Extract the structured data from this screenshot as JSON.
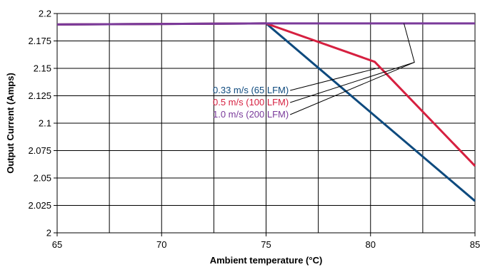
{
  "chart_data": {
    "type": "line",
    "title": "",
    "xlabel": "Ambient temperature (°C)",
    "ylabel": "Output Current (Amps)",
    "xlim": [
      65,
      85
    ],
    "ylim": [
      2,
      2.2
    ],
    "xticks": [
      65,
      70,
      75,
      80,
      85
    ],
    "xtick_labels": [
      "65",
      "70",
      "75",
      "80",
      "85"
    ],
    "yticks": [
      2,
      2.025,
      2.05,
      2.075,
      2.1,
      2.125,
      2.15,
      2.175,
      2.2
    ],
    "ytick_labels": [
      "2",
      "2.025",
      "2.05",
      "2.075",
      "2.1",
      "2.125",
      "2.15",
      "2.175",
      "2.2"
    ],
    "grid": true,
    "legend_position": "center, with leader lines to each curve",
    "series": [
      {
        "name": "0.33 m/s (65 LFM)",
        "color": "#0e4a7e",
        "x": [
          65,
          75,
          85
        ],
        "y": [
          2.19,
          2.191,
          2.029
        ]
      },
      {
        "name": "0.5 m/s (100 LFM)",
        "color": "#d62040",
        "x": [
          65,
          75,
          80.2,
          85
        ],
        "y": [
          2.19,
          2.191,
          2.156,
          2.061
        ]
      },
      {
        "name": "1.0 m/s (200 LFM)",
        "color": "#7a3a9a",
        "x": [
          65,
          75,
          85
        ],
        "y": [
          2.19,
          2.191,
          2.191
        ]
      }
    ]
  }
}
